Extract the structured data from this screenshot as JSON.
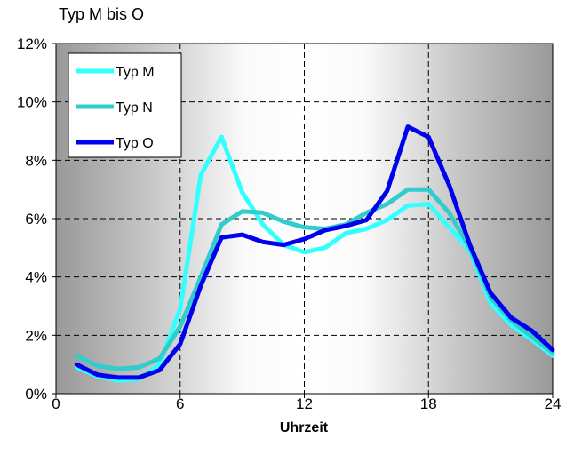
{
  "chart_data": {
    "type": "line",
    "title": "Typ M bis O",
    "xlabel": "Uhrzeit",
    "ylabel": "",
    "xlim": [
      0,
      24
    ],
    "ylim": [
      0,
      12
    ],
    "xticks": [
      0,
      6,
      12,
      18,
      24
    ],
    "xtick_labels": [
      "0",
      "6",
      "12",
      "18",
      "24"
    ],
    "yticks": [
      0,
      2,
      4,
      6,
      8,
      10,
      12
    ],
    "ytick_labels": [
      "0%",
      "2%",
      "4%",
      "6%",
      "8%",
      "10%",
      "12%"
    ],
    "y_unit": "%",
    "grid": "dashed, both axes",
    "background": "gray-white-gray horizontal gradient",
    "legend_position": "top-left",
    "x": [
      1,
      2,
      3,
      4,
      5,
      6,
      7,
      8,
      9,
      10,
      11,
      12,
      13,
      14,
      15,
      16,
      17,
      18,
      19,
      20,
      21,
      22,
      23,
      24
    ],
    "series": [
      {
        "name": "Typ M",
        "color": "#33ffff",
        "values": [
          0.9,
          0.6,
          0.45,
          0.5,
          1.0,
          2.9,
          7.5,
          8.8,
          6.9,
          5.8,
          5.1,
          4.85,
          5.0,
          5.5,
          5.65,
          5.95,
          6.45,
          6.5,
          5.7,
          4.9,
          3.1,
          2.35,
          1.85,
          1.3
        ]
      },
      {
        "name": "Typ N",
        "color": "#33cccc",
        "values": [
          1.3,
          0.95,
          0.85,
          0.9,
          1.2,
          2.3,
          4.0,
          5.8,
          6.25,
          6.2,
          5.9,
          5.7,
          5.65,
          5.8,
          6.2,
          6.5,
          7.0,
          7.0,
          6.2,
          5.0,
          3.3,
          2.5,
          1.95,
          1.4
        ]
      },
      {
        "name": "Typ O",
        "color": "#0000ee",
        "values": [
          1.0,
          0.65,
          0.55,
          0.55,
          0.8,
          1.7,
          3.7,
          5.35,
          5.45,
          5.2,
          5.1,
          5.3,
          5.6,
          5.75,
          5.95,
          6.95,
          9.15,
          8.8,
          7.15,
          5.1,
          3.45,
          2.6,
          2.15,
          1.5
        ]
      }
    ]
  }
}
